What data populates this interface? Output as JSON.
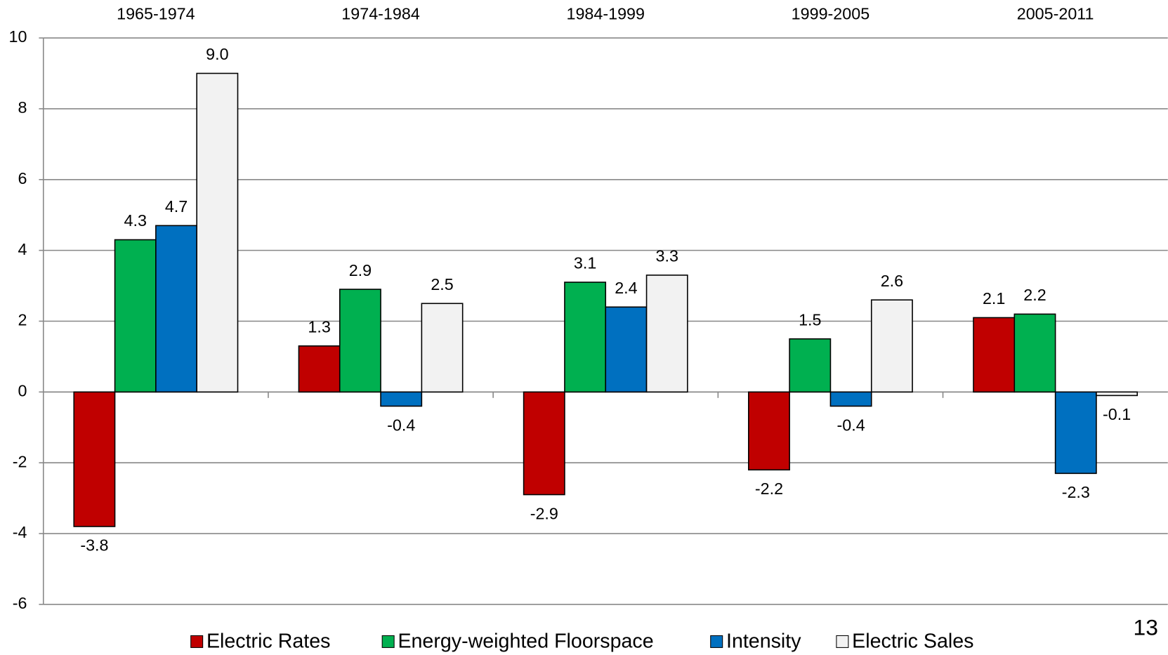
{
  "chart_data": {
    "type": "bar",
    "categories": [
      "1965-1974",
      "1974-1984",
      "1984-1999",
      "1999-2005",
      "2005-2011"
    ],
    "series": [
      {
        "name": "Electric Rates",
        "color": "#c00000",
        "values": [
          -3.8,
          1.3,
          -2.9,
          -2.2,
          2.1
        ]
      },
      {
        "name": "Energy-weighted Floorspace",
        "color": "#00b050",
        "values": [
          4.3,
          2.9,
          3.1,
          1.5,
          2.2
        ]
      },
      {
        "name": "Intensity",
        "color": "#0070c0",
        "values": [
          4.7,
          -0.4,
          2.4,
          -0.4,
          -2.3
        ]
      },
      {
        "name": "Electric Sales",
        "color": "#f2f2f2",
        "values": [
          9.0,
          2.5,
          3.3,
          2.6,
          -0.1
        ]
      }
    ],
    "value_labels": [
      [
        "-3.8",
        "1.3",
        "-2.9",
        "-2.2",
        "2.1"
      ],
      [
        "4.3",
        "2.9",
        "3.1",
        "1.5",
        "2.2"
      ],
      [
        "4.7",
        "-0.4",
        "2.4",
        "-0.4",
        "-2.3"
      ],
      [
        "9.0",
        "2.5",
        "3.3",
        "2.6",
        "-0.1"
      ]
    ],
    "ylim": [
      -6,
      10
    ],
    "yticks": [
      -6,
      -4,
      -2,
      0,
      2,
      4,
      6,
      8,
      10
    ],
    "grid": true,
    "legend": "bottom",
    "page_number": "13"
  }
}
